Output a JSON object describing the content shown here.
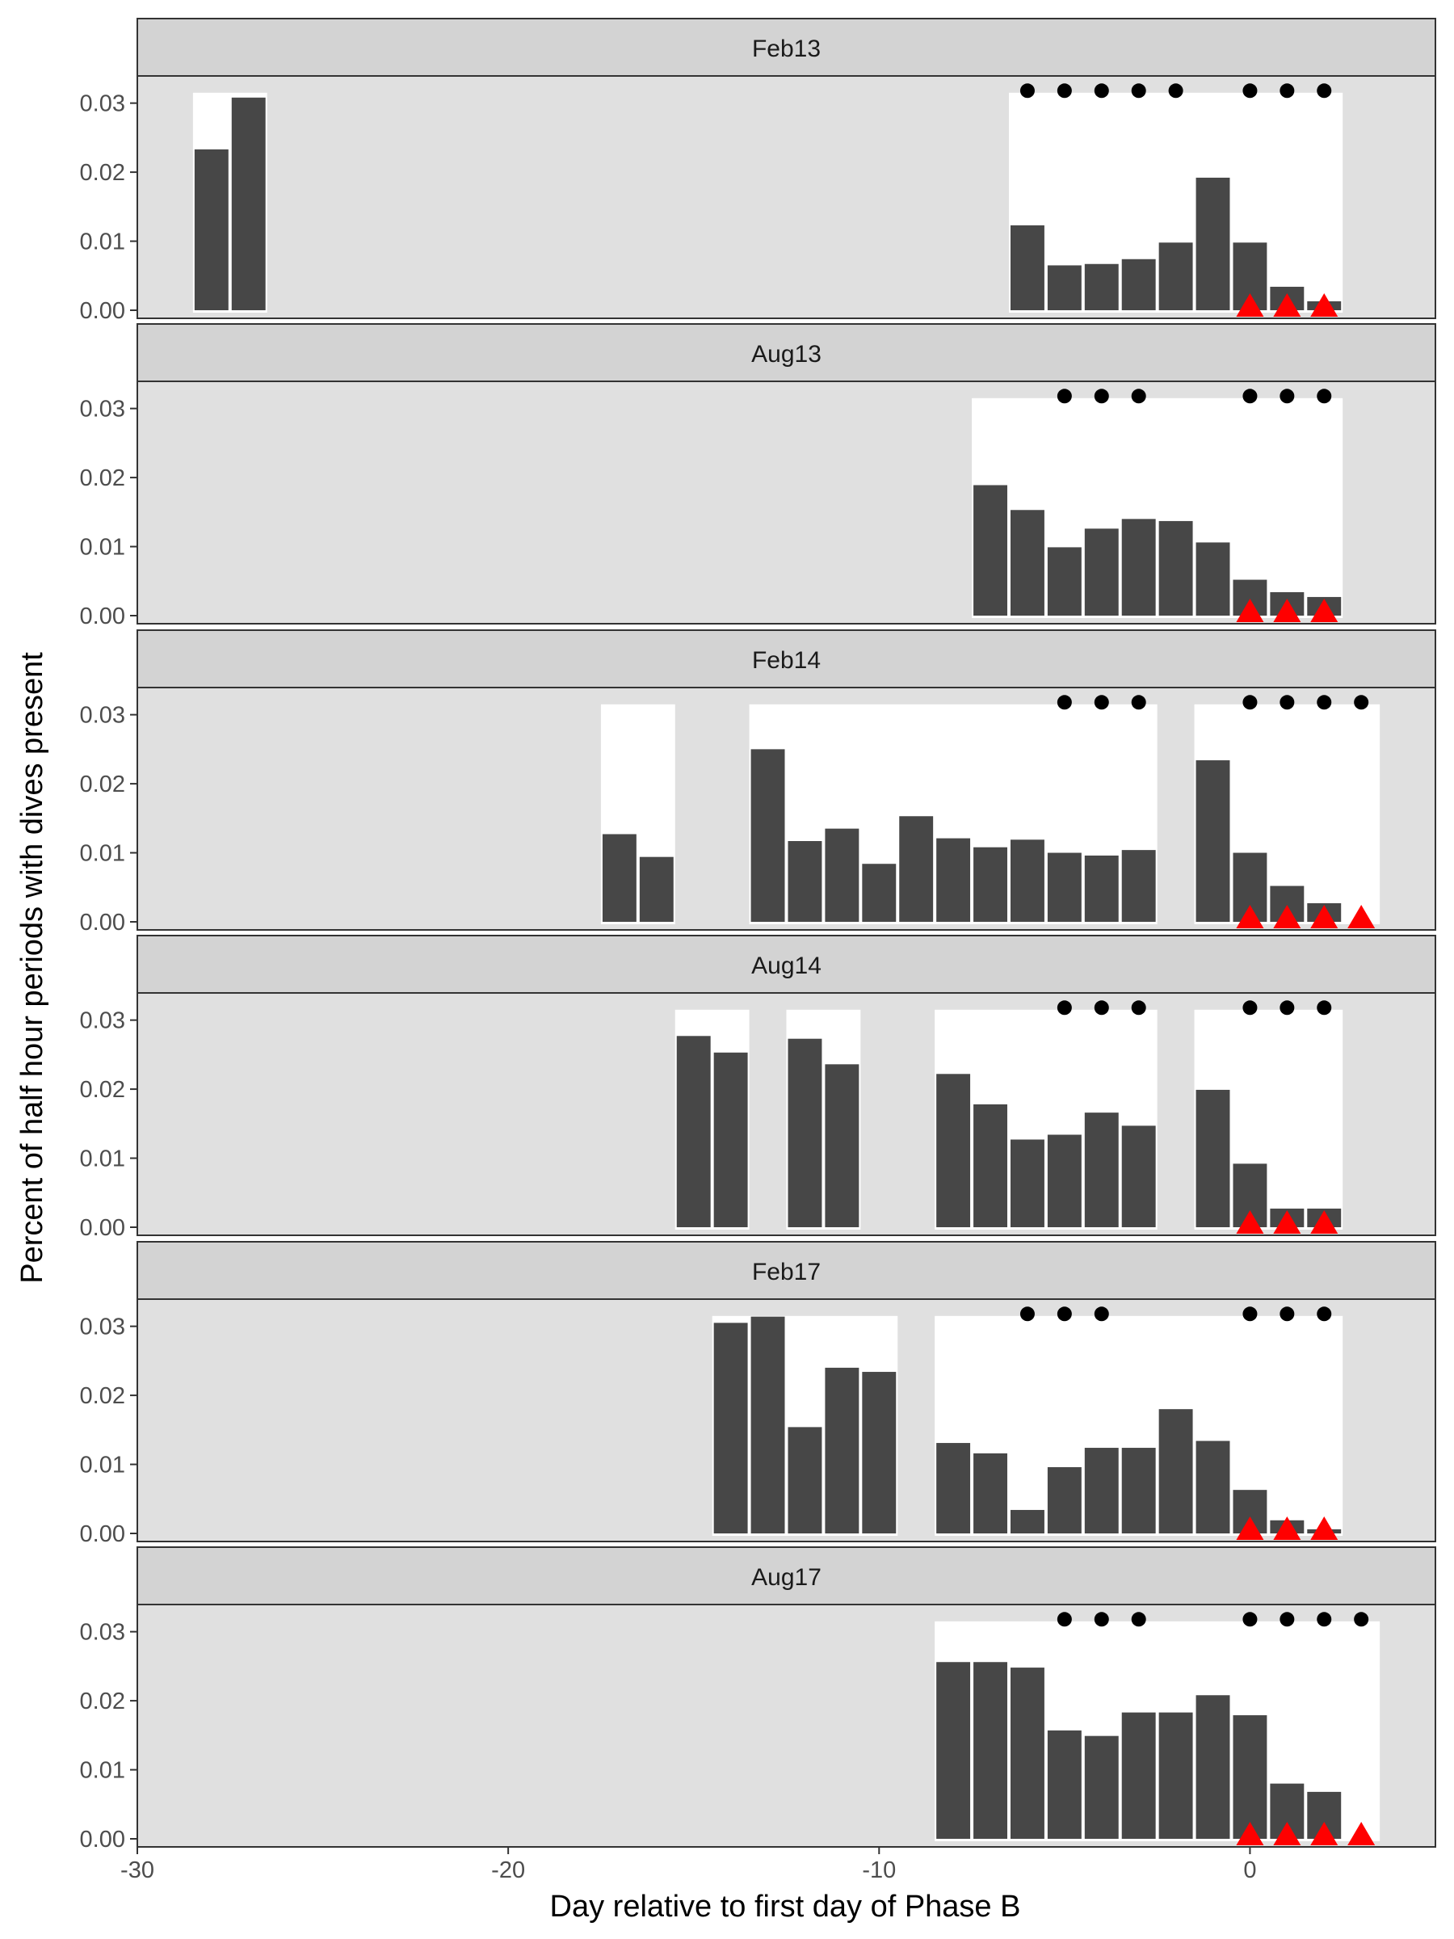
{
  "chart_data": {
    "type": "bar",
    "xlabel": "Day relative to first day of Phase B",
    "ylabel": "Percent of half hour periods with dives present",
    "xlim": [
      -30,
      5
    ],
    "ylim": [
      0,
      0.033
    ],
    "x_ticks": [
      -30,
      -20,
      -10,
      0
    ],
    "y_ticks": [
      0.0,
      0.01,
      0.02,
      0.03
    ],
    "y_tick_labels": [
      "0.00",
      "0.01",
      "0.02",
      "0.03"
    ],
    "x_tick_labels": [
      "-30",
      "-20",
      "-10",
      "0"
    ],
    "colors": {
      "panel_background": "#e0e0e0",
      "strip_background": "#d3d3d3",
      "data_window": "#ffffff",
      "bar": "#474747",
      "circle": "#000000",
      "triangle": "#ff0000"
    },
    "panels": [
      {
        "label": "Feb13",
        "windows": [
          [
            -28.5,
            -26.5
          ],
          [
            -6.5,
            2.5
          ]
        ],
        "bars": [
          {
            "x": -28,
            "y": 0.0233
          },
          {
            "x": -27,
            "y": 0.0308
          },
          {
            "x": -6,
            "y": 0.0123
          },
          {
            "x": -5,
            "y": 0.0065
          },
          {
            "x": -4,
            "y": 0.0067
          },
          {
            "x": -3,
            "y": 0.0074
          },
          {
            "x": -2,
            "y": 0.0098
          },
          {
            "x": -1,
            "y": 0.0192
          },
          {
            "x": 0,
            "y": 0.0098
          },
          {
            "x": 1,
            "y": 0.0034
          },
          {
            "x": 2,
            "y": 0.0013
          }
        ],
        "circles": [
          -6,
          -5,
          -4,
          -3,
          -2,
          0,
          1,
          2
        ],
        "triangles": [
          0,
          1,
          2
        ]
      },
      {
        "label": "Aug13",
        "windows": [
          [
            -7.5,
            2.5
          ]
        ],
        "bars": [
          {
            "x": -7,
            "y": 0.0189
          },
          {
            "x": -6,
            "y": 0.0153
          },
          {
            "x": -5,
            "y": 0.0099
          },
          {
            "x": -4,
            "y": 0.0126
          },
          {
            "x": -3,
            "y": 0.014
          },
          {
            "x": -2,
            "y": 0.0137
          },
          {
            "x": -1,
            "y": 0.0106
          },
          {
            "x": 0,
            "y": 0.0052
          },
          {
            "x": 1,
            "y": 0.0034
          },
          {
            "x": 2,
            "y": 0.0027
          }
        ],
        "circles": [
          -5,
          -4,
          -3,
          0,
          1,
          2
        ],
        "triangles": [
          0,
          1,
          2
        ]
      },
      {
        "label": "Feb14",
        "windows": [
          [
            -17.5,
            -15.5
          ],
          [
            -13.5,
            -2.5
          ],
          [
            -1.5,
            3.5
          ]
        ],
        "bars": [
          {
            "x": -17,
            "y": 0.0127
          },
          {
            "x": -16,
            "y": 0.0094
          },
          {
            "x": -13,
            "y": 0.025
          },
          {
            "x": -12,
            "y": 0.0117
          },
          {
            "x": -11,
            "y": 0.0135
          },
          {
            "x": -10,
            "y": 0.0084
          },
          {
            "x": -9,
            "y": 0.0153
          },
          {
            "x": -8,
            "y": 0.0121
          },
          {
            "x": -7,
            "y": 0.0108
          },
          {
            "x": -6,
            "y": 0.0119
          },
          {
            "x": -5,
            "y": 0.01
          },
          {
            "x": -4,
            "y": 0.0096
          },
          {
            "x": -3,
            "y": 0.0104
          },
          {
            "x": -1,
            "y": 0.0234
          },
          {
            "x": 0,
            "y": 0.01
          },
          {
            "x": 1,
            "y": 0.0052
          },
          {
            "x": 2,
            "y": 0.0027
          }
        ],
        "circles": [
          -5,
          -4,
          -3,
          0,
          1,
          2,
          3
        ],
        "triangles": [
          0,
          1,
          2,
          3
        ]
      },
      {
        "label": "Aug14",
        "windows": [
          [
            -15.5,
            -13.5
          ],
          [
            -12.5,
            -10.5
          ],
          [
            -8.5,
            -2.5
          ],
          [
            -1.5,
            2.5
          ]
        ],
        "bars": [
          {
            "x": -15,
            "y": 0.0277
          },
          {
            "x": -14,
            "y": 0.0253
          },
          {
            "x": -12,
            "y": 0.0273
          },
          {
            "x": -11,
            "y": 0.0236
          },
          {
            "x": -8,
            "y": 0.0222
          },
          {
            "x": -7,
            "y": 0.0178
          },
          {
            "x": -6,
            "y": 0.0127
          },
          {
            "x": -5,
            "y": 0.0134
          },
          {
            "x": -4,
            "y": 0.0166
          },
          {
            "x": -3,
            "y": 0.0147
          },
          {
            "x": -1,
            "y": 0.0199
          },
          {
            "x": 0,
            "y": 0.0092
          },
          {
            "x": 1,
            "y": 0.0027
          },
          {
            "x": 2,
            "y": 0.0027
          }
        ],
        "circles": [
          -5,
          -4,
          -3,
          0,
          1,
          2
        ],
        "triangles": [
          0,
          1,
          2
        ]
      },
      {
        "label": "Feb17",
        "windows": [
          [
            -14.5,
            -9.5
          ],
          [
            -8.5,
            2.5
          ]
        ],
        "bars": [
          {
            "x": -14,
            "y": 0.0305
          },
          {
            "x": -13,
            "y": 0.0314
          },
          {
            "x": -12,
            "y": 0.0154
          },
          {
            "x": -11,
            "y": 0.024
          },
          {
            "x": -10,
            "y": 0.0234
          },
          {
            "x": -8,
            "y": 0.0131
          },
          {
            "x": -7,
            "y": 0.0116
          },
          {
            "x": -6,
            "y": 0.0034
          },
          {
            "x": -5,
            "y": 0.0096
          },
          {
            "x": -4,
            "y": 0.0124
          },
          {
            "x": -3,
            "y": 0.0124
          },
          {
            "x": -2,
            "y": 0.018
          },
          {
            "x": -1,
            "y": 0.0134
          },
          {
            "x": 0,
            "y": 0.0063
          },
          {
            "x": 1,
            "y": 0.0019
          },
          {
            "x": 2,
            "y": 0.0006
          }
        ],
        "circles": [
          -6,
          -5,
          -4,
          0,
          1,
          2
        ],
        "triangles": [
          0,
          1,
          2
        ]
      },
      {
        "label": "Aug17",
        "windows": [
          [
            -8.5,
            3.5
          ]
        ],
        "bars": [
          {
            "x": -8,
            "y": 0.0256
          },
          {
            "x": -7,
            "y": 0.0256
          },
          {
            "x": -6,
            "y": 0.0248
          },
          {
            "x": -5,
            "y": 0.0157
          },
          {
            "x": -4,
            "y": 0.0149
          },
          {
            "x": -3,
            "y": 0.0183
          },
          {
            "x": -2,
            "y": 0.0183
          },
          {
            "x": -1,
            "y": 0.0208
          },
          {
            "x": 0,
            "y": 0.0179
          },
          {
            "x": 1,
            "y": 0.008
          },
          {
            "x": 2,
            "y": 0.0068
          }
        ],
        "circles": [
          -5,
          -4,
          -3,
          0,
          1,
          2,
          3
        ],
        "triangles": [
          0,
          1,
          2,
          3
        ]
      }
    ]
  }
}
